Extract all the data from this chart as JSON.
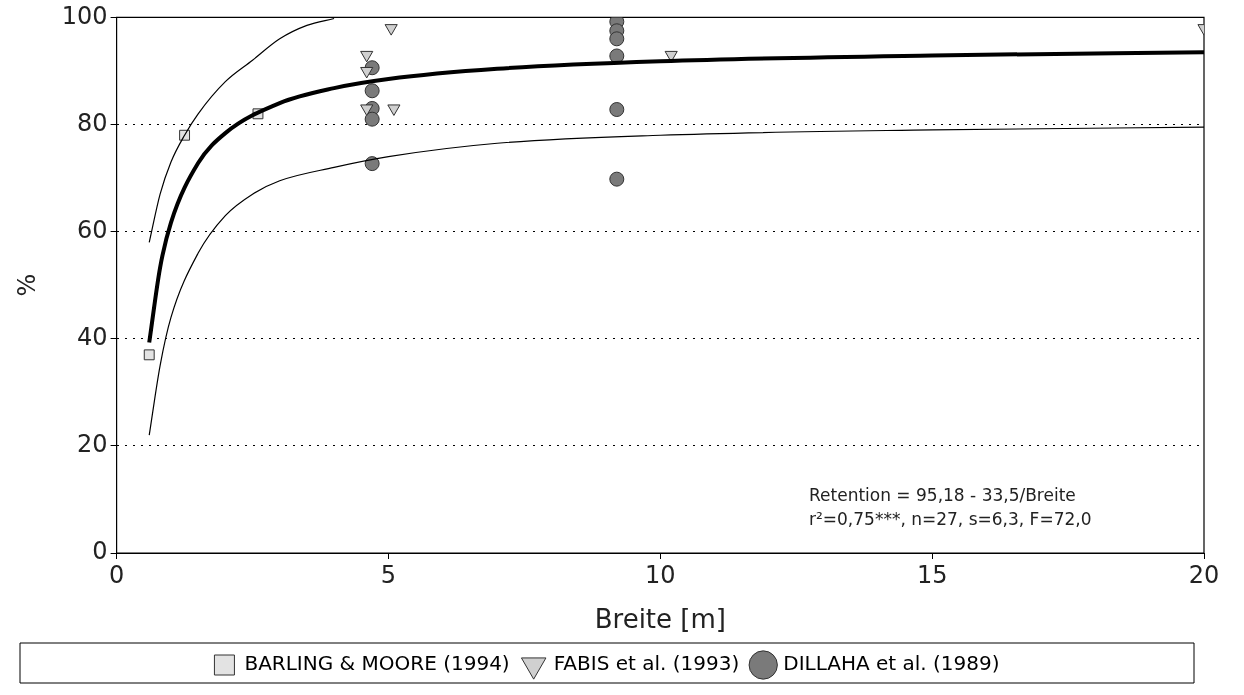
{
  "chart_data": {
    "type": "scatter",
    "xlabel": "Breite [m]",
    "ylabel": "%",
    "xlim": [
      0,
      20
    ],
    "xticks": [
      0,
      5,
      10,
      15,
      20
    ],
    "ylim": [
      0,
      100
    ],
    "yticks": [
      0,
      20,
      40,
      60,
      80,
      100
    ],
    "grid": "y",
    "legend": "bottom",
    "annotations": [
      "Retention = 95,18 - 33,5/Breite",
      "r²=0,75***, n=27, s=6,3, F=72,0"
    ],
    "series": [
      {
        "name": "BARLING & MOORE (1994)",
        "color": "#e3e3e3",
        "marker": "square",
        "x": [
          0.6,
          1.25,
          2.6
        ],
        "values": [
          37,
          78,
          82
        ]
      },
      {
        "name": "FABIS et al. (1993)",
        "color": "#d0d0d0",
        "marker": "triangle",
        "x": [
          5.05,
          4.6,
          4.6,
          5.1,
          4.6,
          10.2,
          20
        ],
        "values": [
          98,
          93,
          90,
          83,
          83,
          93,
          98
        ]
      },
      {
        "name": "DILLAHA et al. (1989)",
        "color": "#7a7a7a",
        "marker": "circle",
        "x": [
          4.7,
          4.7,
          4.7,
          4.7,
          4.7,
          9.2,
          9.2,
          9.2,
          9.2,
          9.2,
          9.2
        ],
        "values": [
          90.6,
          86.3,
          83,
          81,
          72.7,
          99.2,
          97.5,
          96,
          92.8,
          82.8,
          69.8
        ]
      },
      {
        "type": "line",
        "color": "#000000",
        "marker": "none",
        "x": [
          0.6,
          0.8,
          1,
          1.5,
          2,
          3,
          4,
          5,
          7,
          10,
          15,
          20
        ],
        "values": [
          39.3,
          53.3,
          61.7,
          72.8,
          78.4,
          84,
          86.8,
          88.5,
          90.4,
          91.8,
          92.9,
          93.5
        ]
      },
      {
        "type": "line",
        "color": "#000000",
        "marker": "none",
        "x": [
          0.6,
          0.8,
          1,
          1.25,
          1.5,
          2,
          2.5,
          3,
          3.5,
          4
        ],
        "values": [
          58,
          67,
          73,
          78,
          82,
          88,
          92,
          96,
          98.5,
          99.8
        ]
      },
      {
        "type": "line",
        "color": "#000000",
        "marker": "none",
        "x": [
          0.6,
          0.8,
          1,
          1.5,
          2,
          2.5,
          3,
          4,
          5,
          7,
          10,
          15,
          20
        ],
        "values": [
          22,
          35,
          44,
          56,
          63,
          67,
          69.5,
          72,
          74,
          76.5,
          78,
          79,
          79.5
        ]
      }
    ]
  }
}
